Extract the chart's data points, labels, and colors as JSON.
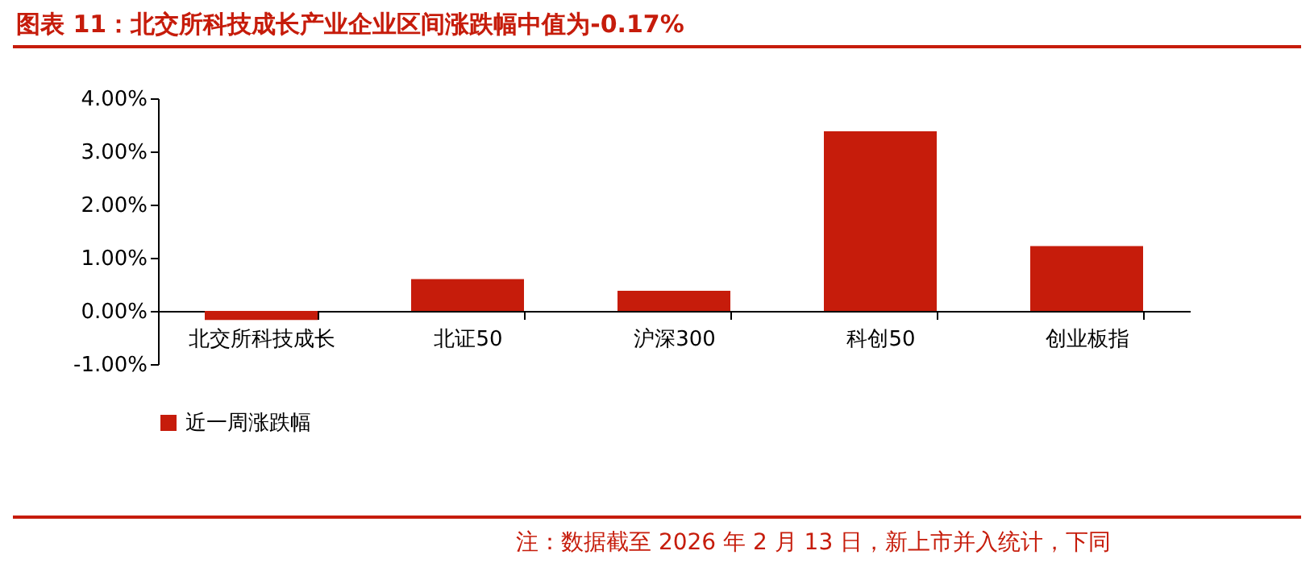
{
  "chart_data": {
    "type": "bar",
    "title": "图表 11：北交所科技成长产业企业区间涨跌幅中值为-0.17%",
    "categories": [
      "北交所科技成长",
      "北证50",
      "沪深300",
      "科创50",
      "创业板指"
    ],
    "series": [
      {
        "name": "近一周涨跌幅",
        "color": "#c61c0b",
        "values": [
          -0.17,
          0.6,
          0.38,
          3.38,
          1.22
        ]
      }
    ],
    "ylim": [
      -1,
      4
    ],
    "yticks": [
      {
        "value": -1,
        "label": "-1.00%"
      },
      {
        "value": 0,
        "label": "0.00%"
      },
      {
        "value": 1,
        "label": "1.00%"
      },
      {
        "value": 2,
        "label": "2.00%"
      },
      {
        "value": 3,
        "label": "3.00%"
      },
      {
        "value": 4,
        "label": "4.00%"
      }
    ],
    "legend": "bottom",
    "annotations": [
      "注：数据截至 2026 年 2 月 13 日，新上市并入统计，下同"
    ]
  }
}
